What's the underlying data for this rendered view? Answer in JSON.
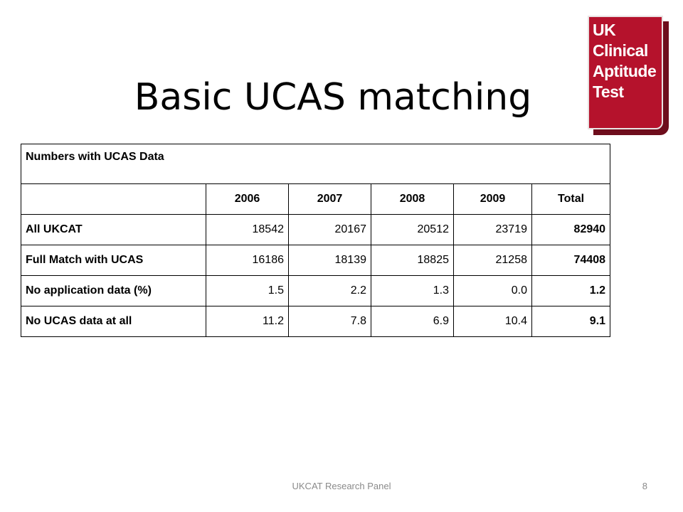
{
  "slide": {
    "title": "Basic UCAS matching"
  },
  "logo": {
    "lines": [
      "UK",
      "Clinical",
      "Aptitude",
      "Test"
    ],
    "color": "#b5122c"
  },
  "table": {
    "caption": "Numbers with UCAS Data",
    "header": [
      "",
      "2006",
      "2007",
      "2008",
      "2009",
      "Total"
    ],
    "rows": [
      {
        "label": "All UKCAT",
        "values": [
          "18542",
          "20167",
          "20512",
          "23719"
        ],
        "total": "82940"
      },
      {
        "label": "Full Match with UCAS",
        "values": [
          "16186",
          "18139",
          "18825",
          "21258"
        ],
        "total": "74408"
      },
      {
        "label": "No application data (%)",
        "values": [
          "1.5",
          "2.2",
          "1.3",
          "0.0"
        ],
        "total": "1.2"
      },
      {
        "label": "No UCAS data at all",
        "values": [
          "11.2",
          "7.8",
          "6.9",
          "10.4"
        ],
        "total": "9.1"
      }
    ]
  },
  "footer": {
    "text": "UKCAT Research Panel",
    "page_number": "8"
  }
}
